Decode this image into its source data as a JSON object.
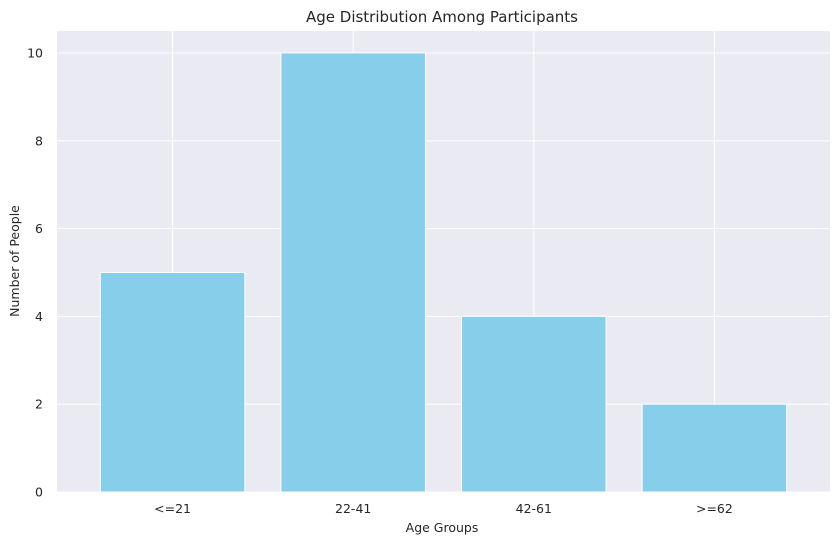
{
  "chart_data": {
    "type": "bar",
    "title": "Age Distribution Among Participants",
    "xlabel": "Age Groups",
    "ylabel": "Number of People",
    "categories": [
      "<=21",
      "22-41",
      "42-61",
      ">=62"
    ],
    "values": [
      5,
      10,
      4,
      2
    ],
    "ylim": [
      0,
      10.5
    ],
    "yticks": [
      0,
      2,
      4,
      6,
      8,
      10
    ],
    "grid": true,
    "bar_color": "#87CEEB",
    "plot_background": "#EAEAF2",
    "grid_color": "#FFFFFF"
  }
}
